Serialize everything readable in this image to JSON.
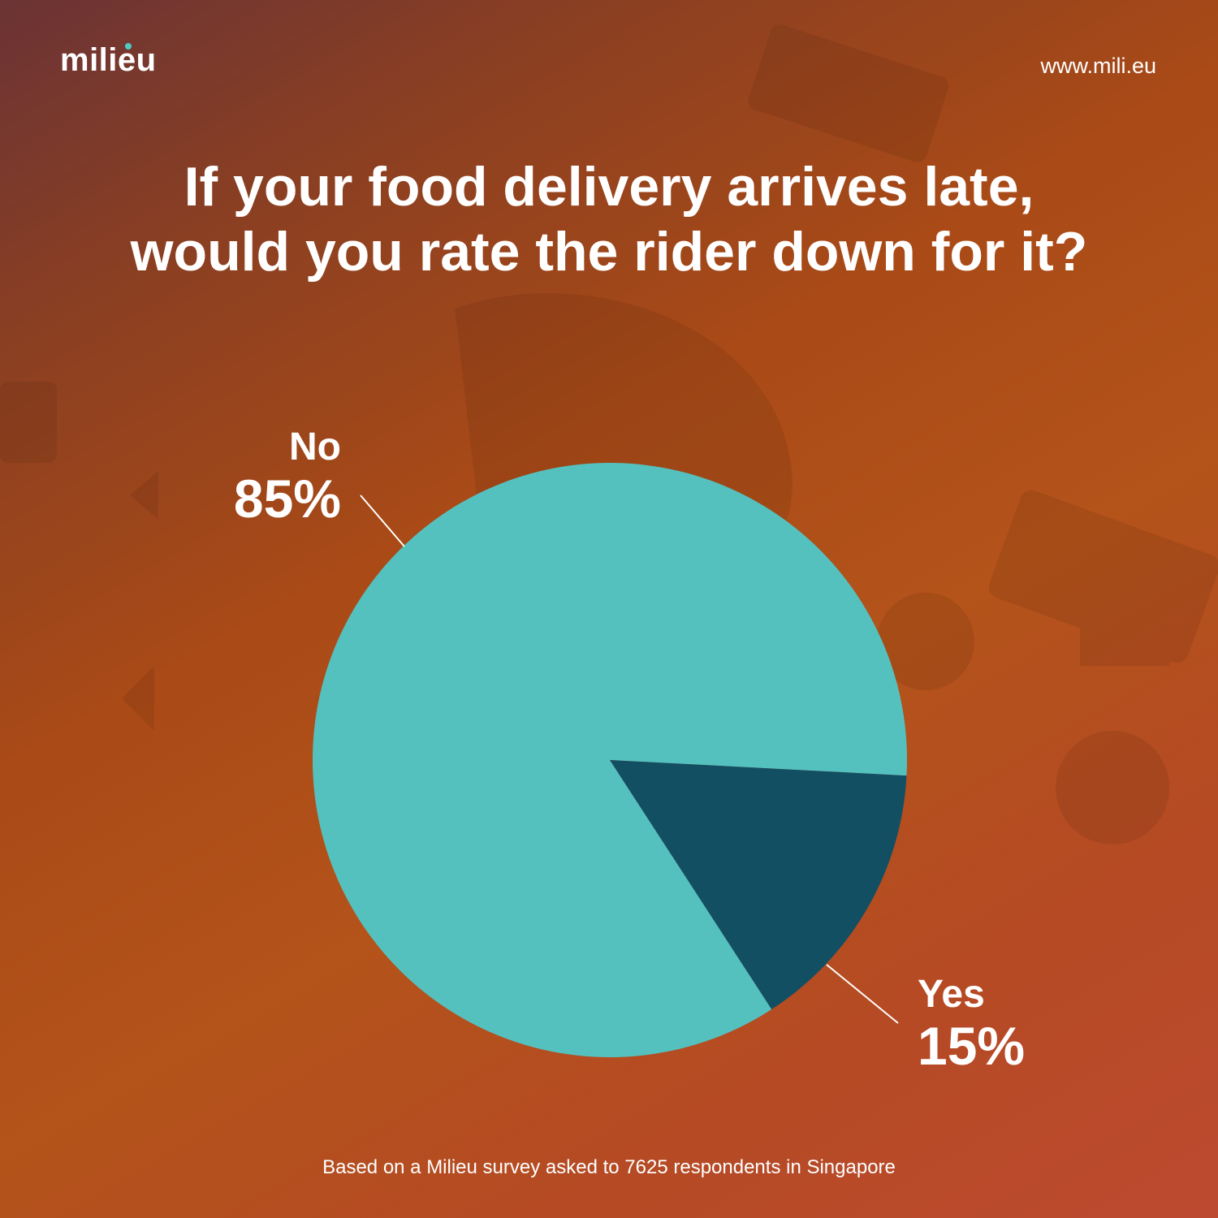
{
  "brand": {
    "logo": "milieu",
    "url": "www.mili.eu"
  },
  "title_line1": "If your food delivery arrives late,",
  "title_line2": "would you rate the rider down for it?",
  "footnote": "Based on a Milieu survey asked to 7625 respondents in Singapore",
  "colors": {
    "no": "#54c1bf",
    "yes": "#124f63",
    "leader": "#ffffff"
  },
  "chart_data": {
    "type": "pie",
    "title": "If your food delivery arrives late, would you rate the rider down for it?",
    "slices": [
      {
        "label": "No",
        "value": 85,
        "display": "85%"
      },
      {
        "label": "Yes",
        "value": 15,
        "display": "15%"
      }
    ]
  }
}
